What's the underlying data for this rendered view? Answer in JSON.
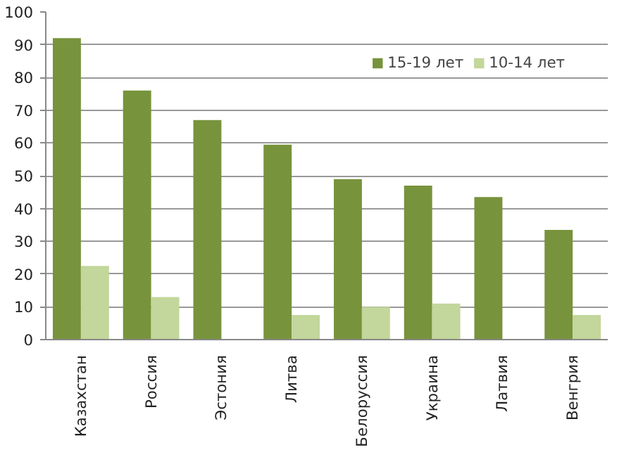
{
  "chart_data": {
    "type": "bar",
    "categories": [
      "Казахстан",
      "Россия",
      "Эстония",
      "Литва",
      "Белоруссия",
      "Украина",
      "Латвия",
      "Венгрия"
    ],
    "series": [
      {
        "name": "15-19 лет",
        "color": "#77933c",
        "values": [
          92,
          76,
          67,
          59.5,
          49,
          47,
          43.5,
          33.5
        ]
      },
      {
        "name": "10-14 лет",
        "color": "#c3d69b",
        "values": [
          22.5,
          13,
          null,
          7.5,
          10,
          11,
          null,
          7.5
        ]
      }
    ],
    "ylim": [
      0,
      100
    ],
    "yticks": [
      0,
      10,
      20,
      30,
      40,
      50,
      60,
      70,
      80,
      90,
      100
    ],
    "grid": "y",
    "legend": "top right"
  }
}
